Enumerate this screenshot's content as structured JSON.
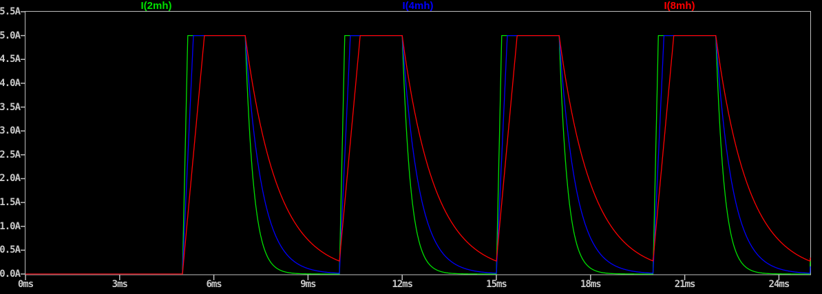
{
  "window": {
    "background": "#000000",
    "axis_color": "#bfbfbf",
    "label_color": "#c8c8c8"
  },
  "legend": [
    {
      "label": "I(2mh)",
      "color": "#00e000"
    },
    {
      "label": "I(4mh)",
      "color": "#0000ff"
    },
    {
      "label": "I(8mh)",
      "color": "#ff0000"
    }
  ],
  "chart_data": {
    "type": "line",
    "title": "",
    "grid": false,
    "legend_position": "top",
    "x_axis": {
      "unit": "ms",
      "min": 0,
      "max": 25,
      "tick_step_ms": 3,
      "tick_values_ms": [
        0,
        3,
        6,
        9,
        12,
        15,
        18,
        21,
        24
      ],
      "tick_labels": [
        "0ms",
        "3ms",
        "6ms",
        "9ms",
        "12ms",
        "15ms",
        "18ms",
        "21ms",
        "24ms"
      ]
    },
    "y_axis": {
      "unit": "A",
      "min": 0,
      "max": 5.5,
      "tick_step_A": 0.5,
      "tick_values_A": [
        0,
        0.5,
        1.0,
        1.5,
        2.0,
        2.5,
        3.0,
        3.5,
        4.0,
        4.5,
        5.0,
        5.5
      ],
      "tick_labels": [
        "0.0A",
        "0.5A",
        "1.0A",
        "1.5A",
        "2.0A",
        "2.5A",
        "3.0A",
        "3.5A",
        "4.0A",
        "4.5A",
        "5.0A",
        "5.5A"
      ]
    },
    "pulse": {
      "first_on_ms": 5,
      "period_ms": 5,
      "on_time_ms": 2,
      "amplitude_A": 5
    },
    "series": [
      {
        "name": "I(2mh)",
        "color": "#00e000",
        "inductance_mH": 2,
        "ramp_to_full_ms": 0.17,
        "decay_tau_ms": 0.27,
        "peak_A": 5.0,
        "residual_at_next_pulse_A": 0.0
      },
      {
        "name": "I(4mh)",
        "color": "#0000ff",
        "inductance_mH": 4,
        "ramp_to_full_ms": 0.35,
        "decay_tau_ms": 0.53,
        "peak_A": 5.0,
        "residual_at_next_pulse_A": 0.02
      },
      {
        "name": "I(8mh)",
        "color": "#ff0000",
        "inductance_mH": 8,
        "ramp_to_full_ms": 0.7,
        "decay_tau_ms": 1.03,
        "peak_A": 5.0,
        "residual_at_next_pulse_A": 0.29
      }
    ]
  }
}
